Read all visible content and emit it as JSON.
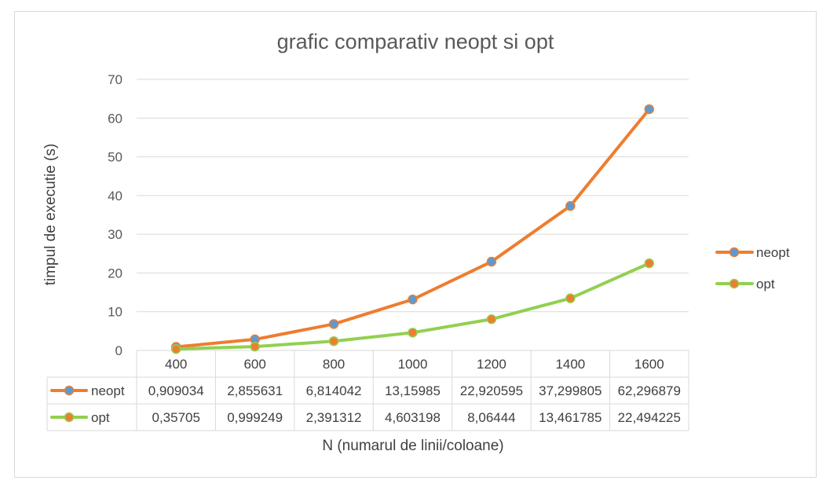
{
  "chart_data": {
    "type": "line",
    "title": "grafic comparativ neopt si opt",
    "xlabel": "N (numarul de linii/coloane)",
    "ylabel": "timpul de executie (s)",
    "categories": [
      "400",
      "600",
      "800",
      "1000",
      "1200",
      "1400",
      "1600"
    ],
    "ylim": [
      0,
      70
    ],
    "yticks": [
      0,
      10,
      20,
      30,
      40,
      50,
      60,
      70
    ],
    "grid": true,
    "legend_position": "right",
    "data_table": true,
    "series": [
      {
        "name": "neopt",
        "color": "#ed7d31",
        "marker_color": "#5b9bd5",
        "values": [
          0.909034,
          2.855631,
          6.814042,
          13.15985,
          22.920595,
          37.299805,
          62.296879
        ],
        "labels": [
          "0,909034",
          "2,855631",
          "6,814042",
          "13,15985",
          "22,920595",
          "37,299805",
          "62,296879"
        ]
      },
      {
        "name": "opt",
        "color": "#92d050",
        "marker_color": "#ed7d31",
        "values": [
          0.35705,
          0.999249,
          2.391312,
          4.603198,
          8.06444,
          13.461785,
          22.494225
        ],
        "labels": [
          "0,35705",
          "0,999249",
          "2,391312",
          "4,603198",
          "8,06444",
          "13,461785",
          "22,494225"
        ]
      }
    ]
  }
}
